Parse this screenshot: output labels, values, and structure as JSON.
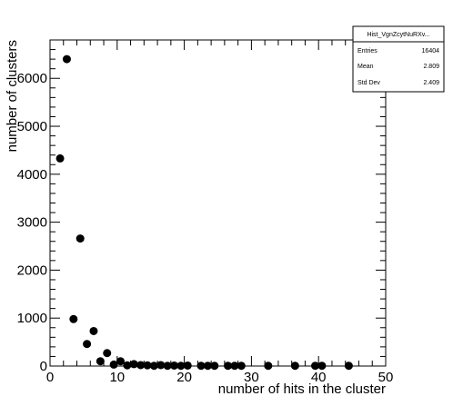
{
  "chart_data": {
    "type": "scatter",
    "xlabel": "number of hits in the cluster",
    "ylabel": "number of clusters",
    "xlim": [
      0,
      50
    ],
    "ylim": [
      0,
      6800
    ],
    "x_ticks": [
      0,
      10,
      20,
      30,
      40,
      50
    ],
    "y_ticks": [
      0,
      1000,
      2000,
      3000,
      4000,
      5000,
      6000
    ],
    "x_tick_labels": [
      "0",
      "10",
      "20",
      "30",
      "40",
      "50"
    ],
    "y_tick_labels": [
      "0",
      "1000",
      "2000",
      "3000",
      "4000",
      "5000",
      "6000"
    ],
    "grid": false,
    "marker_color": "#000000",
    "points": [
      {
        "x": 1.5,
        "y": 4330
      },
      {
        "x": 2.5,
        "y": 6400
      },
      {
        "x": 3.5,
        "y": 980
      },
      {
        "x": 4.5,
        "y": 2660
      },
      {
        "x": 5.5,
        "y": 460
      },
      {
        "x": 6.5,
        "y": 730
      },
      {
        "x": 7.5,
        "y": 100
      },
      {
        "x": 8.5,
        "y": 270
      },
      {
        "x": 9.5,
        "y": 30
      },
      {
        "x": 10.5,
        "y": 100
      },
      {
        "x": 11.5,
        "y": 15
      },
      {
        "x": 12.5,
        "y": 40
      },
      {
        "x": 13.5,
        "y": 20
      },
      {
        "x": 14.5,
        "y": 15
      },
      {
        "x": 15.5,
        "y": 5
      },
      {
        "x": 16.5,
        "y": 20
      },
      {
        "x": 17.5,
        "y": 5
      },
      {
        "x": 18.5,
        "y": 10
      },
      {
        "x": 19.5,
        "y": 5
      },
      {
        "x": 20.5,
        "y": 10
      },
      {
        "x": 22.5,
        "y": 5
      },
      {
        "x": 23.5,
        "y": 5
      },
      {
        "x": 24.5,
        "y": 5
      },
      {
        "x": 26.5,
        "y": 5
      },
      {
        "x": 27.5,
        "y": 5
      },
      {
        "x": 28.5,
        "y": 5
      },
      {
        "x": 32.5,
        "y": 5
      },
      {
        "x": 36.5,
        "y": 5
      },
      {
        "x": 39.5,
        "y": 5
      },
      {
        "x": 40.5,
        "y": 5
      },
      {
        "x": 44.5,
        "y": 5
      }
    ],
    "stats_box": {
      "title": "Hist_VgnZcytNuRXv...",
      "rows": [
        {
          "label": "Entries",
          "value": "16404"
        },
        {
          "label": "Mean",
          "value": "2.809"
        },
        {
          "label": "Std Dev",
          "value": "2.409"
        }
      ]
    }
  }
}
